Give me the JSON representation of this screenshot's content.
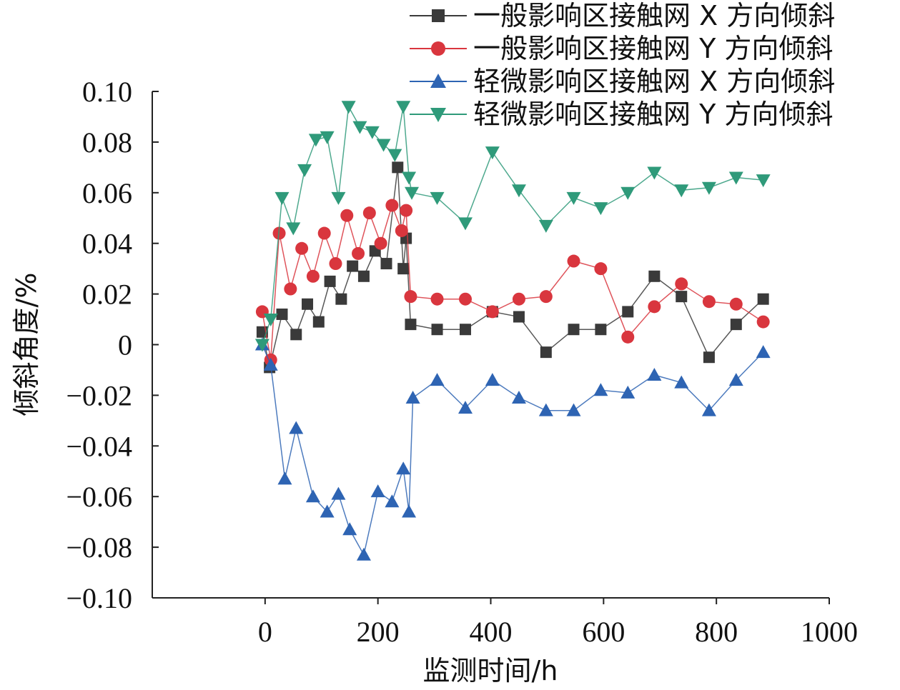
{
  "chart_data": {
    "type": "line",
    "xlabel": "监测时间/h",
    "ylabel": "倾斜角度/%",
    "xlim": [
      -200,
      1000
    ],
    "ylim": [
      -0.1,
      0.1
    ],
    "xticks": [
      "0",
      "200",
      "400",
      "600",
      "800",
      "1000"
    ],
    "yticks": [
      "-0.10",
      "-0.08",
      "-0.06",
      "-0.04",
      "-0.02",
      "0",
      "0.02",
      "0.04",
      "0.06",
      "0.08",
      "0.10"
    ],
    "grid": false,
    "legend_position": "top-right",
    "series": [
      {
        "name": "一般影响区接触网 X 方向倾斜",
        "color": "#3a3a3a",
        "marker": "square",
        "x": [
          -5,
          8,
          30,
          55,
          75,
          95,
          115,
          135,
          155,
          175,
          195,
          215,
          235,
          245,
          250,
          258,
          305,
          355,
          403,
          450,
          498,
          547,
          595,
          643,
          690,
          738,
          787,
          835,
          883
        ],
        "y": [
          0.005,
          -0.009,
          0.012,
          0.004,
          0.016,
          0.009,
          0.025,
          0.018,
          0.031,
          0.027,
          0.037,
          0.032,
          0.07,
          0.03,
          0.042,
          0.008,
          0.006,
          0.006,
          0.013,
          0.011,
          -0.003,
          0.006,
          0.006,
          0.013,
          0.027,
          0.019,
          -0.005,
          0.008,
          0.018
        ]
      },
      {
        "name": "一般影响区接触网 Y 方向倾斜",
        "color": "#d9363e",
        "marker": "circle",
        "x": [
          -5,
          10,
          25,
          45,
          65,
          85,
          105,
          125,
          145,
          165,
          185,
          205,
          225,
          242,
          250,
          258,
          305,
          355,
          403,
          450,
          498,
          547,
          595,
          643,
          690,
          738,
          787,
          835,
          883
        ],
        "y": [
          0.013,
          -0.006,
          0.044,
          0.022,
          0.038,
          0.027,
          0.044,
          0.032,
          0.051,
          0.036,
          0.052,
          0.04,
          0.055,
          0.045,
          0.053,
          0.019,
          0.018,
          0.018,
          0.013,
          0.018,
          0.019,
          0.033,
          0.03,
          0.003,
          0.015,
          0.024,
          0.017,
          0.016,
          0.009
        ]
      },
      {
        "name": "轻微影响区接触网 X 方向倾斜",
        "color": "#2e64b3",
        "marker": "triangle-up",
        "x": [
          -5,
          10,
          35,
          55,
          85,
          110,
          130,
          150,
          175,
          200,
          225,
          245,
          255,
          262,
          305,
          355,
          403,
          450,
          498,
          547,
          595,
          643,
          690,
          738,
          787,
          835,
          883
        ],
        "y": [
          0.0,
          -0.008,
          -0.053,
          -0.033,
          -0.06,
          -0.066,
          -0.059,
          -0.073,
          -0.083,
          -0.058,
          -0.062,
          -0.049,
          -0.066,
          -0.021,
          -0.014,
          -0.025,
          -0.014,
          -0.021,
          -0.026,
          -0.026,
          -0.018,
          -0.019,
          -0.012,
          -0.015,
          -0.026,
          -0.014,
          -0.003
        ]
      },
      {
        "name": "轻微影响区接触网 Y 方向倾斜",
        "color": "#2f9a7a",
        "marker": "triangle-down",
        "x": [
          -5,
          10,
          30,
          50,
          70,
          90,
          110,
          130,
          148,
          168,
          190,
          210,
          230,
          245,
          255,
          260,
          305,
          355,
          403,
          450,
          498,
          547,
          595,
          643,
          690,
          738,
          787,
          835,
          883
        ],
        "y": [
          0.0,
          0.01,
          0.058,
          0.046,
          0.069,
          0.081,
          0.082,
          0.058,
          0.094,
          0.086,
          0.084,
          0.079,
          0.075,
          0.094,
          0.066,
          0.06,
          0.058,
          0.048,
          0.076,
          0.061,
          0.047,
          0.058,
          0.054,
          0.06,
          0.068,
          0.061,
          0.062,
          0.066,
          0.065
        ]
      }
    ]
  }
}
